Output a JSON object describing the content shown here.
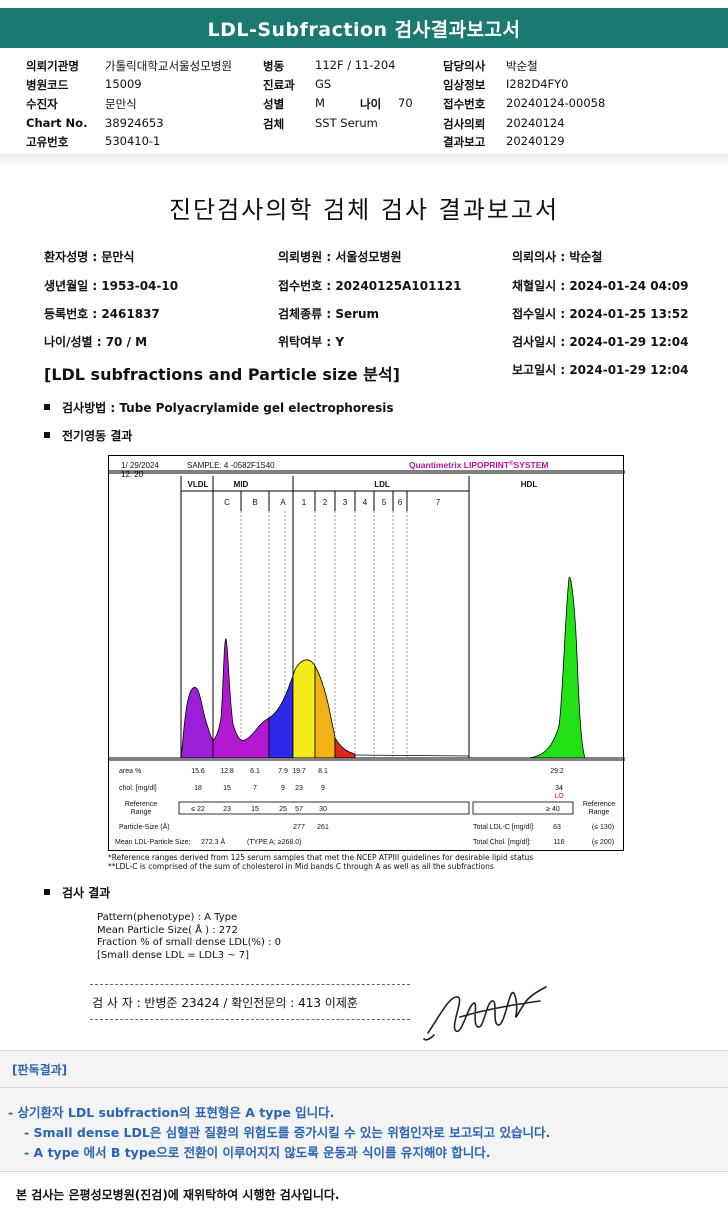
{
  "title": "LDL-Subfraction 검사결과보고서",
  "header": {
    "rows": [
      [
        {
          "label": "의뢰기관명",
          "value": "가톨릭대학교서울성모병원"
        },
        {
          "label": "병동",
          "value": "112F / 11-204"
        },
        {
          "label": "담당의사",
          "value": "박순철"
        }
      ],
      [
        {
          "label": "병원코드",
          "value": "15009"
        },
        {
          "label": "진료과",
          "value": "GS"
        },
        {
          "label": "임상정보",
          "value": "I282D4FY0"
        }
      ],
      [
        {
          "label": "수진자",
          "value": "문만식"
        },
        {
          "label": "성별",
          "value": "M"
        },
        {
          "label": "접수번호",
          "value": "20240124-00058"
        }
      ],
      [
        {
          "label": "Chart No.",
          "value": "38924653"
        },
        {
          "label": "검체",
          "value": "SST Serum"
        },
        {
          "label": "검사의뢰",
          "value": "20240124"
        }
      ],
      [
        {
          "label": "고유번호",
          "value": "530410-1"
        },
        {
          "label": "",
          "value": ""
        },
        {
          "label": "결과보고",
          "value": "20240129"
        }
      ]
    ],
    "age_label": "나이",
    "age_value": "70"
  },
  "report": {
    "title": "진단검사의학 검체 검사 결과보고서",
    "rows": [
      [
        "환자성명 : 문만식",
        "의뢰병원 : 서울성모병원",
        "의뢰의사 : 박순철"
      ],
      [
        "생년월일 : 1953-04-10",
        "접수번호 : 20240125A101121",
        "채혈일시 : 2024-01-24 04:09"
      ],
      [
        "등록번호 : 2461837",
        "검체종류 : Serum",
        "접수일시 : 2024-01-25 13:52"
      ],
      [
        "나이/성별 : 70 / M",
        "위탁여부 : Y",
        "검사일시 : 2024-01-29 12:04"
      ]
    ],
    "report_time": "보고일시 : 2024-01-29 12:04",
    "section_title": "[LDL subfractions and Particle size 분석]",
    "method": "검사방법 : Tube Polyacrylamide gel electrophoresis",
    "electro_title": "전기영동 결과",
    "result_title": "검사 결과"
  },
  "chart_data": {
    "type": "area",
    "date": "1/ 29/2024",
    "time": "12: 20",
    "sample": "SAMPLE:   4 -0582F1S40",
    "system_pre": "Quantimetrix LIPOPRINT",
    "system_sup": "®",
    "system_post": "SYSTEM",
    "groups": [
      "VLDL",
      "MID",
      "LDL",
      "HDL"
    ],
    "bands": [
      "C",
      "B",
      "A",
      "1",
      "2",
      "3",
      "4",
      "5",
      "6",
      "7"
    ],
    "colors": {
      "vldl": "#9b1fd6",
      "mid": "#b318d0",
      "a": "#2f28ea",
      "ldl1": "#f3ec1a",
      "ldl2": "#f2b114",
      "ldl3": "#d9281c",
      "hdl": "#22e216"
    },
    "table": {
      "row_labels": {
        "area": "area %",
        "chol": "chol. [mg/dl]",
        "ref1": "Reference",
        "ref2": "Range",
        "size": "Particle-Size (Å)",
        "mean": "Mean LDL-Particle Size:"
      },
      "area": [
        "15.6",
        "12.8",
        "6.1",
        "7.9",
        "19.7",
        "8.1"
      ],
      "chol": [
        "18",
        "15",
        "7",
        "9",
        "23",
        "9"
      ],
      "ref": [
        "≤ 22",
        "23",
        "15",
        "25",
        "57",
        "30"
      ],
      "size": [
        "277",
        "261"
      ],
      "mean": "272.3 Å",
      "type_note": "(TYPE A; ≥268.0)",
      "hdl_area": "29.2",
      "hdl_chol": "34",
      "hdl_flag": "LO",
      "hdl_ref": "≥ 40",
      "ref_side1": "Reference",
      "ref_side2": "Range",
      "total_ldl_label": "Total LDL-C [mg/dl]:",
      "total_ldl": "63",
      "total_ldl_ref": "(≤ 130)",
      "total_chol_label": "Total Chol. [mg/dl]:",
      "total_chol": "116",
      "total_chol_ref": "(≤ 200)"
    }
  },
  "footnotes": [
    "*Reference ranges derived from 125 serum samples that met the NCEP ATPIII guidelines for desirable lipid status",
    "**LDL-C is comprised of the sum of cholesterol in Mid bands C through A as well as all the subfractions"
  ],
  "result_lines": [
    "Pattern(phenotype) : A Type",
    "Mean Particle Size( Å ) : 272",
    "Fraction % of small dense LDL(%) : 0",
    "[Small dense LDL = LDL3 ~ 7]"
  ],
  "signature_line": "검 사 자 : 반병준  23424   /   확인전문의 : 413  이제훈",
  "judgment": {
    "title": "[판독결과]",
    "lines": [
      "- 상기환자 LDL subfraction의 표현형은 A type 입니다.",
      "-  Small dense LDL은 심혈관 질환의 위험도를 증가시킬 수 있는 위험인자로 보고되고 있습니다.",
      "-  A type 에서 B type으로 전환이 이루어지지 않도록 운동과 식이를 유지해야 합니다."
    ]
  },
  "bottom_note": "본 검사는 은평성모병원(진검)에 재위탁하여 시행한 검사입니다."
}
